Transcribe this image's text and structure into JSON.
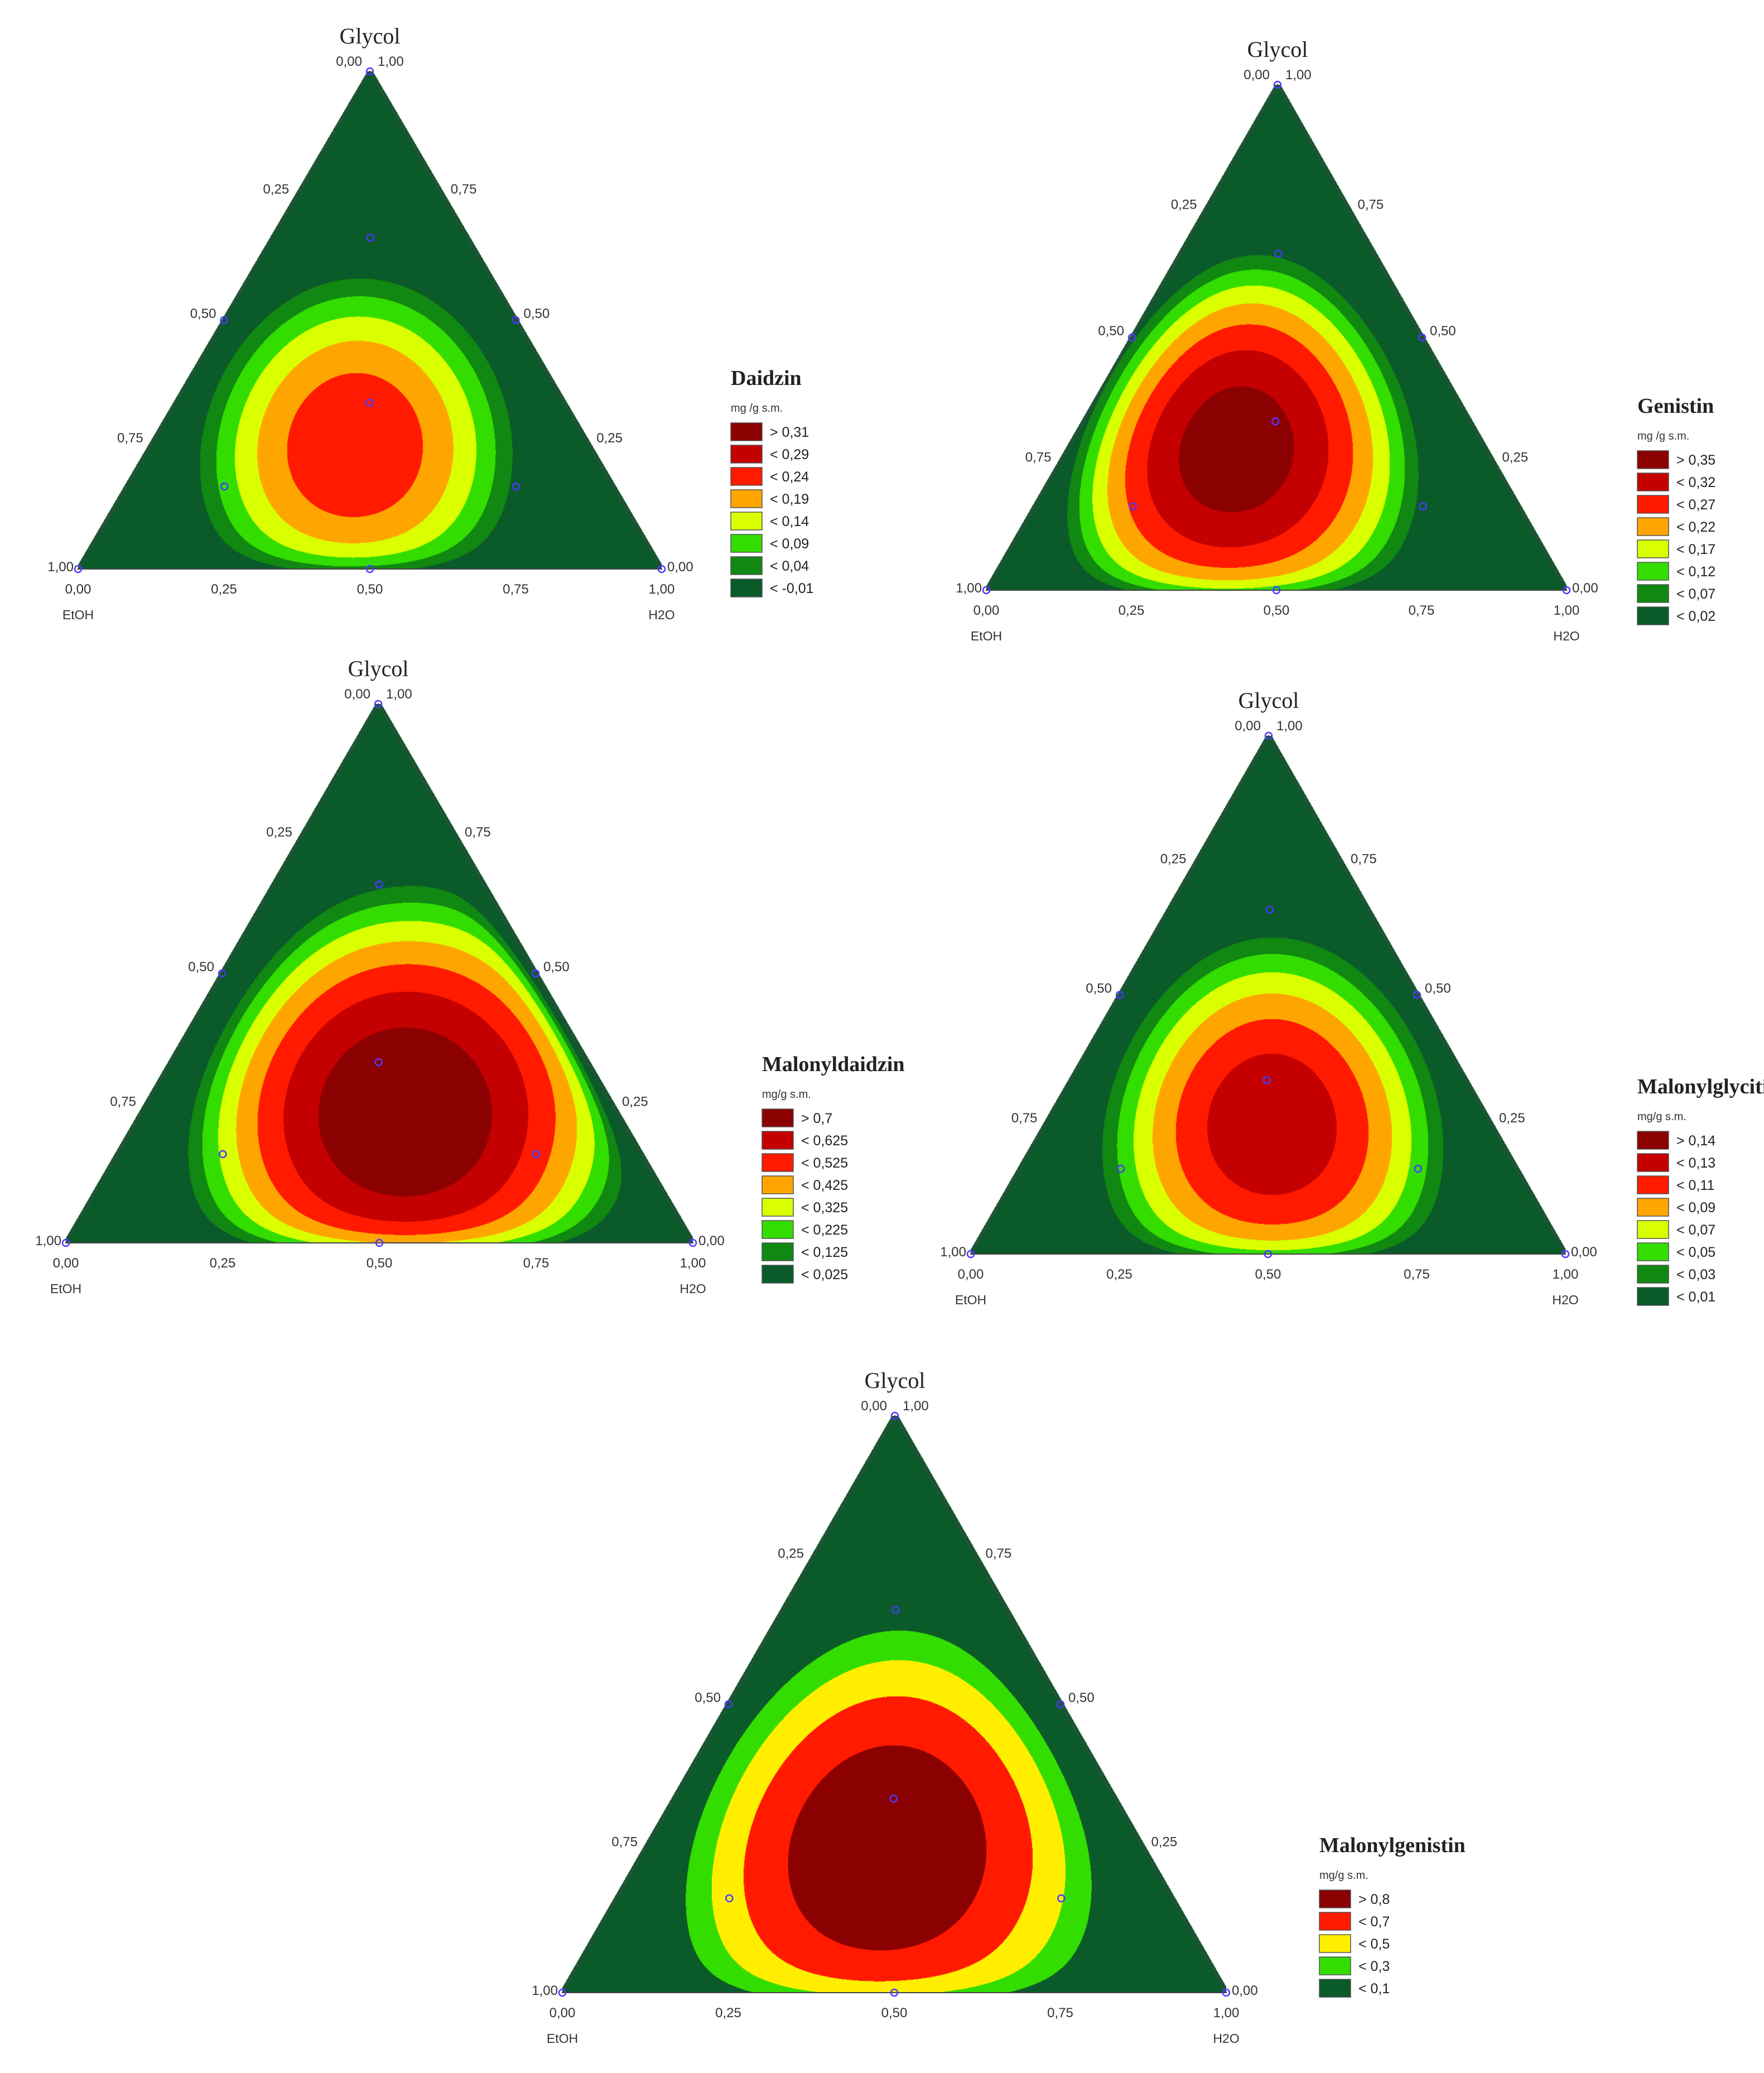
{
  "chart_data": [
    {
      "type": "ternary-contour",
      "apex_label": "Glycol",
      "left_label": "EtOH",
      "right_label": "H2O",
      "ticks": [
        "0,00",
        "0,25",
        "0,50",
        "0,75",
        "1,00"
      ],
      "legend": {
        "title": "Daidzin",
        "unit": "mg /g s.m.",
        "entries": [
          {
            "label": "> 0,31",
            "color": "#8b0000"
          },
          {
            "label": "< 0,29",
            "color": "#c40000"
          },
          {
            "label": "< 0,24",
            "color": "#ff1a00"
          },
          {
            "label": "< 0,19",
            "color": "#ffa500"
          },
          {
            "label": "< 0,14",
            "color": "#d9ff00"
          },
          {
            "label": "< 0,09",
            "color": "#33dd00"
          },
          {
            "label": "< 0,04",
            "color": "#118811"
          },
          {
            "label": "< -0,01",
            "color": "#0b5a2a"
          }
        ]
      },
      "design_points": [
        {
          "glycol": 1,
          "etoh": 0,
          "h2o": 0
        },
        {
          "glycol": 0.667,
          "etoh": 0.167,
          "h2o": 0.167
        },
        {
          "glycol": 0.5,
          "etoh": 0.5,
          "h2o": 0
        },
        {
          "glycol": 0.5,
          "etoh": 0,
          "h2o": 0.5
        },
        {
          "glycol": 0.333,
          "etoh": 0.333,
          "h2o": 0.333
        },
        {
          "glycol": 0.167,
          "etoh": 0.667,
          "h2o": 0.167
        },
        {
          "glycol": 0.167,
          "etoh": 0.167,
          "h2o": 0.667
        },
        {
          "glycol": 0,
          "etoh": 1,
          "h2o": 0
        },
        {
          "glycol": 0,
          "etoh": 0.5,
          "h2o": 0.5
        },
        {
          "glycol": 0,
          "etoh": 0,
          "h2o": 1
        }
      ]
    },
    {
      "type": "ternary-contour",
      "apex_label": "Glycol",
      "left_label": "EtOH",
      "right_label": "H2O",
      "ticks": [
        "0,00",
        "0,25",
        "0,50",
        "0,75",
        "1,00"
      ],
      "legend": {
        "title": "Genistin",
        "unit": "mg /g s.m.",
        "entries": [
          {
            "label": "> 0,35",
            "color": "#8b0000"
          },
          {
            "label": "< 0,32",
            "color": "#c40000"
          },
          {
            "label": "< 0,27",
            "color": "#ff1a00"
          },
          {
            "label": "< 0,22",
            "color": "#ffa500"
          },
          {
            "label": "< 0,17",
            "color": "#d9ff00"
          },
          {
            "label": "< 0,12",
            "color": "#33dd00"
          },
          {
            "label": "< 0,07",
            "color": "#118811"
          },
          {
            "label": "< 0,02",
            "color": "#0b5a2a"
          }
        ]
      },
      "design_points": [
        {
          "glycol": 1,
          "etoh": 0,
          "h2o": 0
        },
        {
          "glycol": 0.667,
          "etoh": 0.167,
          "h2o": 0.167
        },
        {
          "glycol": 0.5,
          "etoh": 0.5,
          "h2o": 0
        },
        {
          "glycol": 0.5,
          "etoh": 0,
          "h2o": 0.5
        },
        {
          "glycol": 0.333,
          "etoh": 0.333,
          "h2o": 0.333
        },
        {
          "glycol": 0.167,
          "etoh": 0.667,
          "h2o": 0.167
        },
        {
          "glycol": 0.167,
          "etoh": 0.167,
          "h2o": 0.667
        },
        {
          "glycol": 0,
          "etoh": 1,
          "h2o": 0
        },
        {
          "glycol": 0,
          "etoh": 0.5,
          "h2o": 0.5
        },
        {
          "glycol": 0,
          "etoh": 0,
          "h2o": 1
        }
      ]
    },
    {
      "type": "ternary-contour",
      "apex_label": "Glycol",
      "left_label": "EtOH",
      "right_label": "H2O",
      "ticks": [
        "0,00",
        "0,25",
        "0,50",
        "0,75",
        "1,00"
      ],
      "legend": {
        "title": "Malonyldaidzin",
        "unit": "mg/g s.m.",
        "entries": [
          {
            "label": "> 0,7",
            "color": "#8b0000"
          },
          {
            "label": "< 0,625",
            "color": "#c40000"
          },
          {
            "label": "< 0,525",
            "color": "#ff1a00"
          },
          {
            "label": "< 0,425",
            "color": "#ffa500"
          },
          {
            "label": "< 0,325",
            "color": "#d9ff00"
          },
          {
            "label": "< 0,225",
            "color": "#33dd00"
          },
          {
            "label": "< 0,125",
            "color": "#118811"
          },
          {
            "label": "< 0,025",
            "color": "#0b5a2a"
          }
        ]
      },
      "design_points": [
        {
          "glycol": 1,
          "etoh": 0,
          "h2o": 0
        },
        {
          "glycol": 0.667,
          "etoh": 0.167,
          "h2o": 0.167
        },
        {
          "glycol": 0.5,
          "etoh": 0.5,
          "h2o": 0
        },
        {
          "glycol": 0.5,
          "etoh": 0,
          "h2o": 0.5
        },
        {
          "glycol": 0.333,
          "etoh": 0.333,
          "h2o": 0.333
        },
        {
          "glycol": 0.167,
          "etoh": 0.667,
          "h2o": 0.167
        },
        {
          "glycol": 0.167,
          "etoh": 0.167,
          "h2o": 0.667
        },
        {
          "glycol": 0,
          "etoh": 1,
          "h2o": 0
        },
        {
          "glycol": 0,
          "etoh": 0.5,
          "h2o": 0.5
        },
        {
          "glycol": 0,
          "etoh": 0,
          "h2o": 1
        }
      ]
    },
    {
      "type": "ternary-contour",
      "apex_label": "Glycol",
      "left_label": "EtOH",
      "right_label": "H2O",
      "ticks": [
        "0,00",
        "0,25",
        "0,50",
        "0,75",
        "1,00"
      ],
      "legend": {
        "title": "Malonylglycitin",
        "unit": "mg/g s.m.",
        "entries": [
          {
            "label": "> 0,14",
            "color": "#8b0000"
          },
          {
            "label": "< 0,13",
            "color": "#c40000"
          },
          {
            "label": "< 0,11",
            "color": "#ff1a00"
          },
          {
            "label": "< 0,09",
            "color": "#ffa500"
          },
          {
            "label": "< 0,07",
            "color": "#d9ff00"
          },
          {
            "label": "< 0,05",
            "color": "#33dd00"
          },
          {
            "label": "< 0,03",
            "color": "#118811"
          },
          {
            "label": "< 0,01",
            "color": "#0b5a2a"
          }
        ]
      },
      "design_points": [
        {
          "glycol": 1,
          "etoh": 0,
          "h2o": 0
        },
        {
          "glycol": 0.667,
          "etoh": 0.167,
          "h2o": 0.167
        },
        {
          "glycol": 0.5,
          "etoh": 0.5,
          "h2o": 0
        },
        {
          "glycol": 0.5,
          "etoh": 0,
          "h2o": 0.5
        },
        {
          "glycol": 0.333,
          "etoh": 0.333,
          "h2o": 0.333
        },
        {
          "glycol": 0.167,
          "etoh": 0.667,
          "h2o": 0.167
        },
        {
          "glycol": 0.167,
          "etoh": 0.167,
          "h2o": 0.667
        },
        {
          "glycol": 0,
          "etoh": 1,
          "h2o": 0
        },
        {
          "glycol": 0,
          "etoh": 0.5,
          "h2o": 0.5
        },
        {
          "glycol": 0,
          "etoh": 0,
          "h2o": 1
        }
      ]
    },
    {
      "type": "ternary-contour",
      "apex_label": "Glycol",
      "left_label": "EtOH",
      "right_label": "H2O",
      "ticks": [
        "0,00",
        "0,25",
        "0,50",
        "0,75",
        "1,00"
      ],
      "legend": {
        "title": "Malonylgenistin",
        "unit": "mg/g s.m.",
        "entries": [
          {
            "label": "> 0,8",
            "color": "#8b0000"
          },
          {
            "label": "< 0,7",
            "color": "#ff1a00"
          },
          {
            "label": "< 0,5",
            "color": "#ffee00"
          },
          {
            "label": "< 0,3",
            "color": "#33dd00"
          },
          {
            "label": "< 0,1",
            "color": "#0b5a2a"
          }
        ]
      },
      "design_points": [
        {
          "glycol": 1,
          "etoh": 0,
          "h2o": 0
        },
        {
          "glycol": 0.667,
          "etoh": 0.167,
          "h2o": 0.167
        },
        {
          "glycol": 0.5,
          "etoh": 0.5,
          "h2o": 0
        },
        {
          "glycol": 0.5,
          "etoh": 0,
          "h2o": 0.5
        },
        {
          "glycol": 0.333,
          "etoh": 0.333,
          "h2o": 0.333
        },
        {
          "glycol": 0.167,
          "etoh": 0.667,
          "h2o": 0.167
        },
        {
          "glycol": 0.167,
          "etoh": 0.167,
          "h2o": 0.667
        },
        {
          "glycol": 0,
          "etoh": 1,
          "h2o": 0
        },
        {
          "glycol": 0,
          "etoh": 0.5,
          "h2o": 0.5
        },
        {
          "glycol": 0,
          "etoh": 0,
          "h2o": 1
        }
      ]
    }
  ]
}
